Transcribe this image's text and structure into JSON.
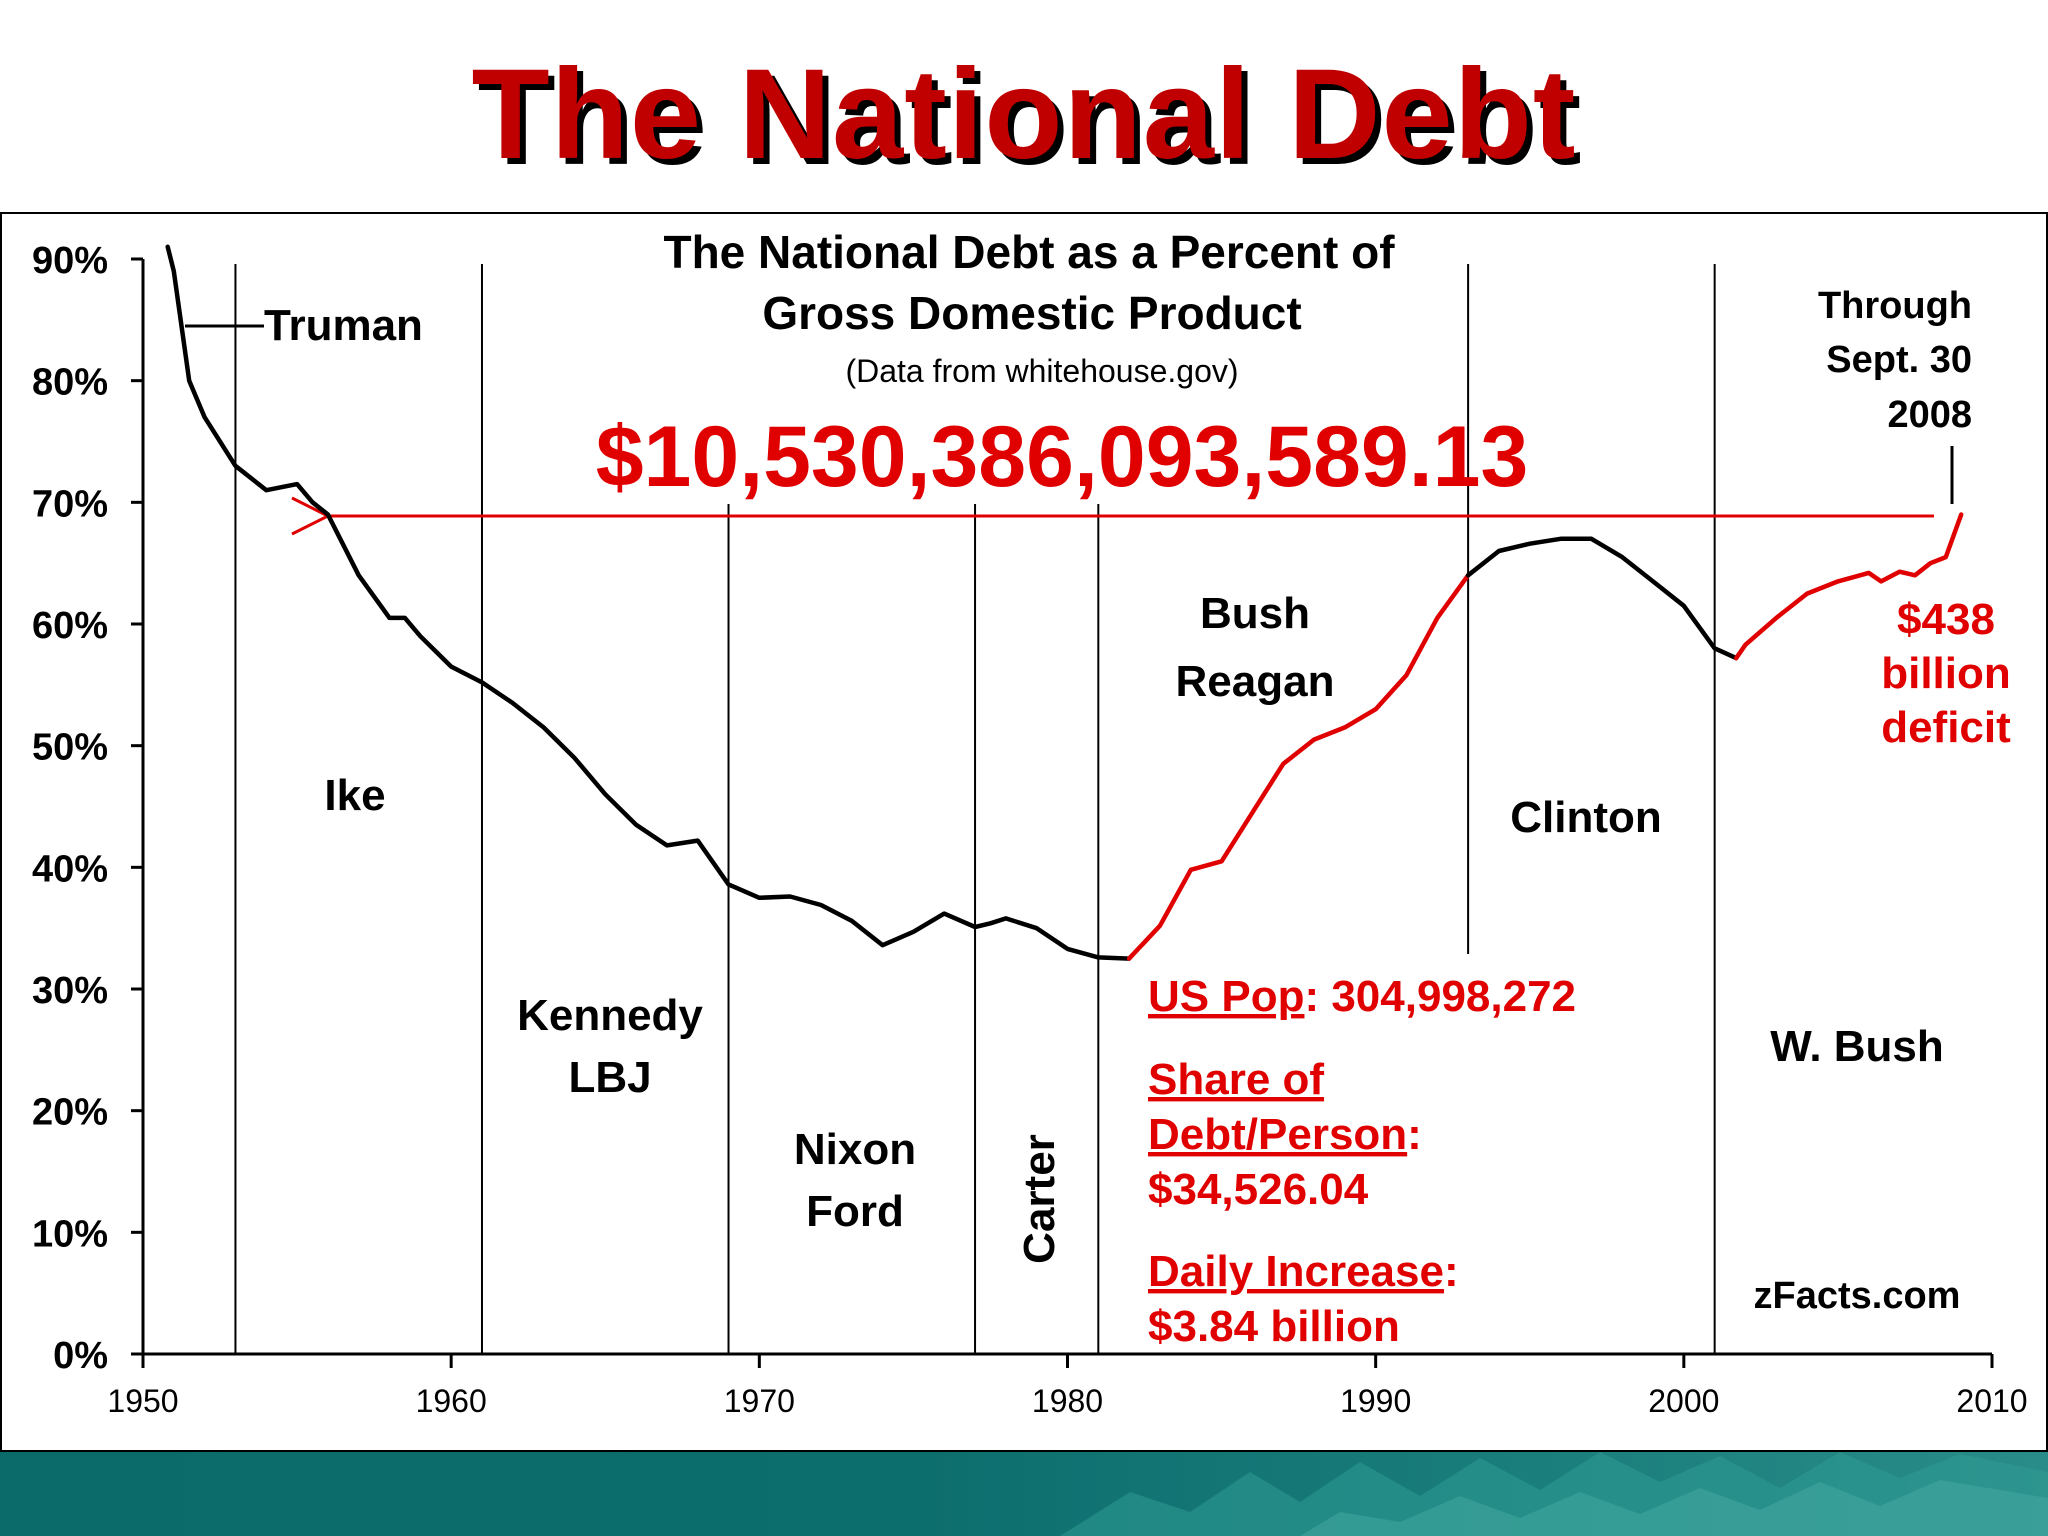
{
  "slide": {
    "title": "The National Debt",
    "colors": {
      "title": "#c00000",
      "red_series": "#e00000",
      "black_series": "#000000",
      "footer": "#0d6e6e"
    }
  },
  "chart_data": {
    "type": "line",
    "title": "The National Debt as a Percent of",
    "title_line2": "Gross Domestic Product",
    "subtitle": "(Data from whitehouse.gov)",
    "xlabel": "",
    "ylabel": "",
    "xlim": [
      1950,
      2010
    ],
    "ylim": [
      0,
      90
    ],
    "x_ticks": [
      "1950",
      "1960",
      "1970",
      "1980",
      "1990",
      "2000",
      "2010"
    ],
    "y_ticks": [
      "0%",
      "10%",
      "20%",
      "30%",
      "40%",
      "50%",
      "60%",
      "70%",
      "80%",
      "90%"
    ],
    "grid": false,
    "series": [
      {
        "color": "#000000",
        "x": [
          1950.8,
          1951,
          1951.5,
          1952,
          1953,
          1954,
          1955,
          1955.5,
          1956,
          1957,
          1958,
          1958.5,
          1959,
          1960,
          1961,
          1962,
          1963,
          1964,
          1965,
          1966,
          1967,
          1968,
          1969,
          1970,
          1971,
          1972,
          1973,
          1974,
          1975,
          1976,
          1977,
          1977.5,
          1978,
          1979,
          1980,
          1981,
          1982
        ],
        "y": [
          91,
          89,
          80,
          77,
          73,
          71,
          71.5,
          70,
          69,
          64,
          60.5,
          60.5,
          59,
          56.5,
          55.2,
          53.5,
          51.5,
          49,
          46,
          43.5,
          41.8,
          42.2,
          38.6,
          37.5,
          37.6,
          36.9,
          35.6,
          33.6,
          34.7,
          36.2,
          35.1,
          35.4,
          35.8,
          35,
          33.3,
          32.6,
          32.5
        ]
      },
      {
        "color": "#e00000",
        "x": [
          1982,
          1983,
          1984,
          1985,
          1986,
          1987,
          1988,
          1989,
          1990,
          1991,
          1992,
          1993
        ],
        "y": [
          32.5,
          35.2,
          39.8,
          40.5,
          44.5,
          48.5,
          50.5,
          51.5,
          53,
          55.8,
          60.5,
          64
        ]
      },
      {
        "color": "#000000",
        "x": [
          1993,
          1994,
          1995,
          1996,
          1997,
          1998,
          1999,
          2000,
          2001,
          2001.7
        ],
        "y": [
          64,
          66,
          66.6,
          67,
          67,
          65.5,
          63.5,
          61.5,
          58,
          57.2
        ]
      },
      {
        "color": "#e00000",
        "x": [
          2001.7,
          2002,
          2003,
          2004,
          2005,
          2006,
          2006.4,
          2007,
          2007.5,
          2008,
          2008.5,
          2009
        ],
        "y": [
          57.2,
          58.3,
          60.5,
          62.5,
          63.5,
          64.2,
          63.5,
          64.3,
          64,
          65,
          65.5,
          69
        ]
      }
    ],
    "presidents": [
      {
        "label": "Truman"
      },
      {
        "label": "Ike"
      },
      {
        "label": "Kennedy",
        "line2": "LBJ"
      },
      {
        "label": "Nixon",
        "line2": "Ford"
      },
      {
        "label": "Carter"
      },
      {
        "label": "Bush",
        "line2": "Reagan"
      },
      {
        "label": "Clinton"
      },
      {
        "label": "W. Bush"
      }
    ],
    "boundaries": [
      1953,
      1961,
      1969,
      1977,
      1981,
      1993,
      2001
    ],
    "debt_total": "$10,530,386,093,589.13",
    "through": {
      "line1": "Through",
      "line2": "Sept. 30",
      "line3": "2008"
    },
    "deficit": {
      "line1": "$438",
      "line2": "billion",
      "line3": "deficit"
    },
    "stats": {
      "pop_label": "US Pop",
      "pop_value": ": 304,998,272",
      "share_label1": "Share of",
      "share_label2": "Debt/Person",
      "share_colon": ":",
      "share_value": "$34,526.04",
      "daily_label": "Daily Increase",
      "daily_colon": ":",
      "daily_value": "$3.84 billion"
    },
    "source": "zFacts.com"
  }
}
